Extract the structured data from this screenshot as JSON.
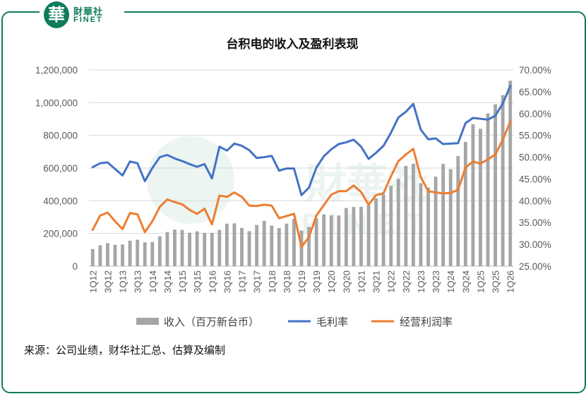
{
  "brand": {
    "logo_char": "華",
    "name_cn": "財華社",
    "name_en": "FINET",
    "watermark_cn": "財華社",
    "watermark_en": "FINET"
  },
  "source_note": "来源：公司业绩，财华社汇总、估算及编制",
  "colors": {
    "frame": "#0e7c5b",
    "bars": "#a6a6a6",
    "gross_margin": "#4472c4",
    "operating_margin": "#ed7d31",
    "grid": "#d9d9d9"
  },
  "chart_data": {
    "type": "bar+line",
    "title": "台积电的收入及盈利表现",
    "x_tick_labels": [
      "1Q12",
      "3Q12",
      "1Q13",
      "3Q13",
      "1Q14",
      "3Q14",
      "1Q15",
      "3Q15",
      "1Q16",
      "3Q16",
      "1Q17",
      "3Q17",
      "1Q18",
      "3Q18",
      "1Q19",
      "3Q19",
      "1Q20",
      "3Q20",
      "1Q21",
      "3Q21",
      "1Q22",
      "3Q22",
      "1Q23",
      "3Q23",
      "1Q24",
      "3Q24",
      "1Q25",
      "3Q25",
      "1Q26"
    ],
    "categories": [
      "1Q12",
      "2Q12",
      "3Q12",
      "4Q12",
      "1Q13",
      "2Q13",
      "3Q13",
      "4Q13",
      "1Q14",
      "2Q14",
      "3Q14",
      "4Q14",
      "1Q15",
      "2Q15",
      "3Q15",
      "4Q15",
      "1Q16",
      "2Q16",
      "3Q16",
      "4Q16",
      "1Q17",
      "2Q17",
      "3Q17",
      "4Q17",
      "1Q18",
      "2Q18",
      "3Q18",
      "4Q18",
      "1Q19",
      "2Q19",
      "3Q19",
      "4Q19",
      "1Q20",
      "2Q20",
      "3Q20",
      "4Q20",
      "1Q21",
      "2Q21",
      "3Q21",
      "4Q21",
      "1Q22",
      "2Q22",
      "3Q22",
      "4Q22",
      "1Q23",
      "2Q23",
      "3Q23",
      "4Q23",
      "1Q24",
      "2Q24",
      "3Q24",
      "4Q24",
      "1Q25",
      "2Q25",
      "3Q25",
      "4Q25",
      "1Q26"
    ],
    "series": [
      {
        "name": "收入（百万新台币）",
        "type": "bar",
        "axis": "left",
        "values": [
          105000,
          128000,
          141000,
          131000,
          133000,
          156000,
          162000,
          146000,
          148000,
          183000,
          209000,
          223000,
          222000,
          205000,
          213000,
          204000,
          204000,
          222000,
          260000,
          262000,
          234000,
          214000,
          252000,
          277000,
          248000,
          233000,
          260000,
          289000,
          218000,
          241000,
          293000,
          317000,
          311000,
          310000,
          356000,
          362000,
          363000,
          372000,
          415000,
          438000,
          491000,
          534000,
          613000,
          626000,
          508000,
          481000,
          547000,
          625000,
          593000,
          673000,
          760000,
          868000,
          840000,
          934000,
          990000,
          1046000,
          1134000
        ]
      },
      {
        "name": "毛利率",
        "type": "line",
        "axis": "right",
        "values": [
          47.7,
          48.6,
          48.8,
          47.3,
          45.8,
          49.0,
          48.6,
          44.5,
          47.5,
          50.0,
          50.5,
          49.7,
          49.1,
          48.4,
          47.8,
          48.4,
          45.1,
          52.4,
          51.5,
          53.1,
          52.6,
          51.6,
          49.8,
          50.0,
          50.3,
          46.9,
          47.4,
          47.4,
          41.3,
          43.0,
          47.6,
          50.2,
          51.8,
          53.0,
          53.4,
          54.0,
          52.4,
          49.6,
          51.0,
          52.6,
          55.6,
          59.1,
          60.4,
          62.2,
          56.3,
          54.1,
          54.3,
          53.0,
          53.1,
          53.2,
          57.8,
          59.0,
          58.8,
          58.6,
          59.5,
          62.3,
          66.3
        ]
      },
      {
        "name": "经营利润率",
        "type": "line",
        "axis": "right",
        "values": [
          33.3,
          36.6,
          37.3,
          35.3,
          33.5,
          37.2,
          36.9,
          32.8,
          35.3,
          38.6,
          40.3,
          39.7,
          39.2,
          37.9,
          37.0,
          38.2,
          34.6,
          41.2,
          40.9,
          41.9,
          40.9,
          38.9,
          38.8,
          39.1,
          38.9,
          36.0,
          36.5,
          37.0,
          29.4,
          31.7,
          36.6,
          39.0,
          41.4,
          42.2,
          42.2,
          43.5,
          42.0,
          39.1,
          41.3,
          41.7,
          45.6,
          49.1,
          50.6,
          51.9,
          45.4,
          42.2,
          41.9,
          41.7,
          41.8,
          42.5,
          47.6,
          49.0,
          48.5,
          49.5,
          50.6,
          54.0,
          58.1
        ]
      }
    ],
    "left_axis": {
      "min": 0,
      "max": 1200000,
      "step": 200000,
      "tick_labels": [
        "0",
        "200,000",
        "400,000",
        "600,000",
        "800,000",
        "1,000,000",
        "1,200,000"
      ]
    },
    "right_axis": {
      "min": 25,
      "max": 70,
      "step": 5,
      "tick_labels": [
        "25.00%",
        "30.00%",
        "35.00%",
        "40.00%",
        "45.00%",
        "50.00%",
        "55.00%",
        "60.00%",
        "65.00%",
        "70.00%"
      ]
    },
    "grid": true,
    "legend_position": "bottom"
  }
}
